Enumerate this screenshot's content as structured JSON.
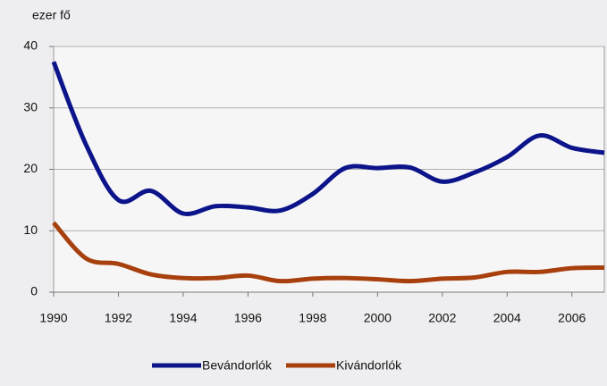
{
  "chart_data": {
    "type": "line",
    "y_label": "ezer fő",
    "x": [
      1990,
      1991,
      1992,
      1993,
      1994,
      1995,
      1996,
      1997,
      1998,
      1999,
      2000,
      2001,
      2002,
      2003,
      2004,
      2005,
      2006,
      2007
    ],
    "series": [
      {
        "name": "Bevándorlók",
        "color": "#0c148a",
        "values": [
          37.5,
          24,
          15,
          16.5,
          12.8,
          14,
          13.8,
          13.3,
          16,
          20.2,
          20.2,
          20.3,
          18,
          19.5,
          22,
          25.5,
          23.5,
          22.7
        ]
      },
      {
        "name": "Kivándorlók",
        "color": "#a8400e",
        "values": [
          11.3,
          5.5,
          4.6,
          2.9,
          2.3,
          2.3,
          2.7,
          1.8,
          2.2,
          2.3,
          2.1,
          1.8,
          2.2,
          2.4,
          3.3,
          3.3,
          3.9,
          4.0
        ]
      }
    ],
    "xlim": [
      1990,
      2007
    ],
    "xticks": [
      1990,
      1992,
      1994,
      1996,
      1998,
      2000,
      2002,
      2004,
      2006
    ],
    "ylim": [
      0,
      40
    ],
    "yticks": [
      0,
      10,
      20,
      30,
      40
    ],
    "grid": true
  }
}
